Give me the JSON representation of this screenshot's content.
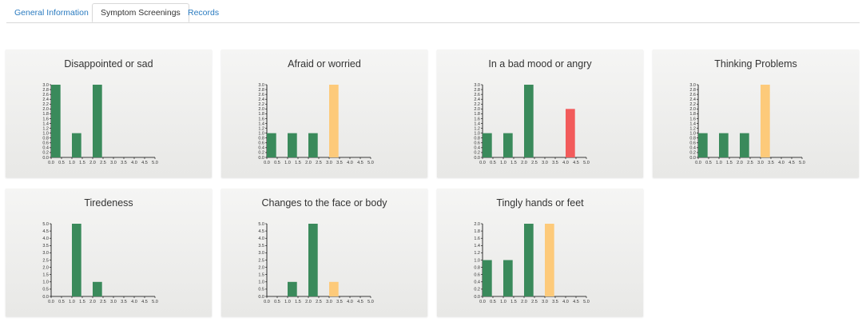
{
  "tabs": [
    {
      "label": "General Information",
      "active": false
    },
    {
      "label": "Symptom Screenings",
      "active": true
    },
    {
      "label": "Records",
      "active": false
    }
  ],
  "colors": {
    "normal": "#3a8a5b",
    "warning": "#fdca7a",
    "alert": "#f25b5b"
  },
  "chart_data": [
    {
      "type": "bar",
      "title": "Disappointed or sad",
      "x_ticks": [
        "0.0",
        "0.5",
        "1.0",
        "1.5",
        "2.0",
        "2.5",
        "3.0",
        "3.5",
        "4.0",
        "4.5",
        "5.0"
      ],
      "xlim": [
        0,
        5
      ],
      "ylim": [
        0,
        3
      ],
      "y_ticks": [
        "0.0",
        "0.2",
        "0.4",
        "0.6",
        "0.8",
        "1.0",
        "1.2",
        "1.4",
        "1.6",
        "1.8",
        "2.0",
        "2.2",
        "2.4",
        "2.6",
        "2.8",
        "3.0"
      ],
      "bars": [
        {
          "x": 0,
          "value": 3,
          "color": "#3a8a5b"
        },
        {
          "x": 1,
          "value": 1,
          "color": "#3a8a5b"
        },
        {
          "x": 2,
          "value": 3,
          "color": "#3a8a5b"
        }
      ]
    },
    {
      "type": "bar",
      "title": "Afraid or worried",
      "x_ticks": [
        "0.0",
        "0.5",
        "1.0",
        "1.5",
        "2.0",
        "2.5",
        "3.0",
        "3.5",
        "4.0",
        "4.5",
        "5.0"
      ],
      "xlim": [
        0,
        5
      ],
      "ylim": [
        0,
        3
      ],
      "y_ticks": [
        "0.0",
        "0.2",
        "0.4",
        "0.6",
        "0.8",
        "1.0",
        "1.2",
        "1.4",
        "1.6",
        "1.8",
        "2.0",
        "2.2",
        "2.4",
        "2.6",
        "2.8",
        "3.0"
      ],
      "bars": [
        {
          "x": 0,
          "value": 1,
          "color": "#3a8a5b"
        },
        {
          "x": 1,
          "value": 1,
          "color": "#3a8a5b"
        },
        {
          "x": 2,
          "value": 1,
          "color": "#3a8a5b"
        },
        {
          "x": 3,
          "value": 3,
          "color": "#fdca7a"
        }
      ]
    },
    {
      "type": "bar",
      "title": "In a bad mood or angry",
      "x_ticks": [
        "0.0",
        "0.5",
        "1.0",
        "1.5",
        "2.0",
        "2.5",
        "3.0",
        "3.5",
        "4.0",
        "4.5",
        "5.0"
      ],
      "xlim": [
        0,
        5
      ],
      "ylim": [
        0,
        3
      ],
      "y_ticks": [
        "0.0",
        "0.2",
        "0.4",
        "0.6",
        "0.8",
        "1.0",
        "1.2",
        "1.4",
        "1.6",
        "1.8",
        "2.0",
        "2.2",
        "2.4",
        "2.6",
        "2.8",
        "3.0"
      ],
      "bars": [
        {
          "x": 0,
          "value": 1,
          "color": "#3a8a5b"
        },
        {
          "x": 1,
          "value": 1,
          "color": "#3a8a5b"
        },
        {
          "x": 2,
          "value": 3,
          "color": "#3a8a5b"
        },
        {
          "x": 4,
          "value": 2,
          "color": "#f25b5b"
        }
      ]
    },
    {
      "type": "bar",
      "title": "Thinking Problems",
      "x_ticks": [
        "0.0",
        "0.5",
        "1.0",
        "1.5",
        "2.0",
        "2.5",
        "3.0",
        "3.5",
        "4.0",
        "4.5",
        "5.0"
      ],
      "xlim": [
        0,
        5
      ],
      "ylim": [
        0,
        3
      ],
      "y_ticks": [
        "0.0",
        "0.2",
        "0.4",
        "0.6",
        "0.8",
        "1.0",
        "1.2",
        "1.4",
        "1.6",
        "1.8",
        "2.0",
        "2.2",
        "2.4",
        "2.6",
        "2.8",
        "3.0"
      ],
      "bars": [
        {
          "x": 0,
          "value": 1,
          "color": "#3a8a5b"
        },
        {
          "x": 1,
          "value": 1,
          "color": "#3a8a5b"
        },
        {
          "x": 2,
          "value": 1,
          "color": "#3a8a5b"
        },
        {
          "x": 3,
          "value": 3,
          "color": "#fdca7a"
        }
      ]
    },
    {
      "type": "bar",
      "title": "Tiredeness",
      "x_ticks": [
        "0.0",
        "0.5",
        "1.0",
        "1.5",
        "2.0",
        "2.5",
        "3.0",
        "3.5",
        "4.0",
        "4.5",
        "5.0"
      ],
      "xlim": [
        0,
        5
      ],
      "ylim": [
        0,
        5
      ],
      "y_ticks": [
        "0.0",
        "0.5",
        "1.0",
        "1.5",
        "2.0",
        "2.5",
        "3.0",
        "3.5",
        "4.0",
        "4.5",
        "5.0"
      ],
      "bars": [
        {
          "x": 1,
          "value": 5,
          "color": "#3a8a5b"
        },
        {
          "x": 2,
          "value": 1,
          "color": "#3a8a5b"
        }
      ]
    },
    {
      "type": "bar",
      "title": "Changes to the face or body",
      "x_ticks": [
        "0.0",
        "0.5",
        "1.0",
        "1.5",
        "2.0",
        "2.5",
        "3.0",
        "3.5",
        "4.0",
        "4.5",
        "5.0"
      ],
      "xlim": [
        0,
        5
      ],
      "ylim": [
        0,
        5
      ],
      "y_ticks": [
        "0.0",
        "0.5",
        "1.0",
        "1.5",
        "2.0",
        "2.5",
        "3.0",
        "3.5",
        "4.0",
        "4.5",
        "5.0"
      ],
      "bars": [
        {
          "x": 1,
          "value": 1,
          "color": "#3a8a5b"
        },
        {
          "x": 2,
          "value": 5,
          "color": "#3a8a5b"
        },
        {
          "x": 3,
          "value": 1,
          "color": "#fdca7a"
        }
      ]
    },
    {
      "type": "bar",
      "title": "Tingly hands or feet",
      "x_ticks": [
        "0.0",
        "0.5",
        "1.0",
        "1.5",
        "2.0",
        "2.5",
        "3.0",
        "3.5",
        "4.0",
        "4.5",
        "5.0"
      ],
      "xlim": [
        0,
        5
      ],
      "ylim": [
        0,
        2
      ],
      "y_ticks": [
        "0.0",
        "0.2",
        "0.4",
        "0.6",
        "0.8",
        "1.0",
        "1.2",
        "1.4",
        "1.6",
        "1.8",
        "2.0"
      ],
      "bars": [
        {
          "x": 0,
          "value": 1,
          "color": "#3a8a5b"
        },
        {
          "x": 1,
          "value": 1,
          "color": "#3a8a5b"
        },
        {
          "x": 2,
          "value": 2,
          "color": "#3a8a5b"
        },
        {
          "x": 3,
          "value": 2,
          "color": "#fdca7a"
        }
      ]
    }
  ]
}
